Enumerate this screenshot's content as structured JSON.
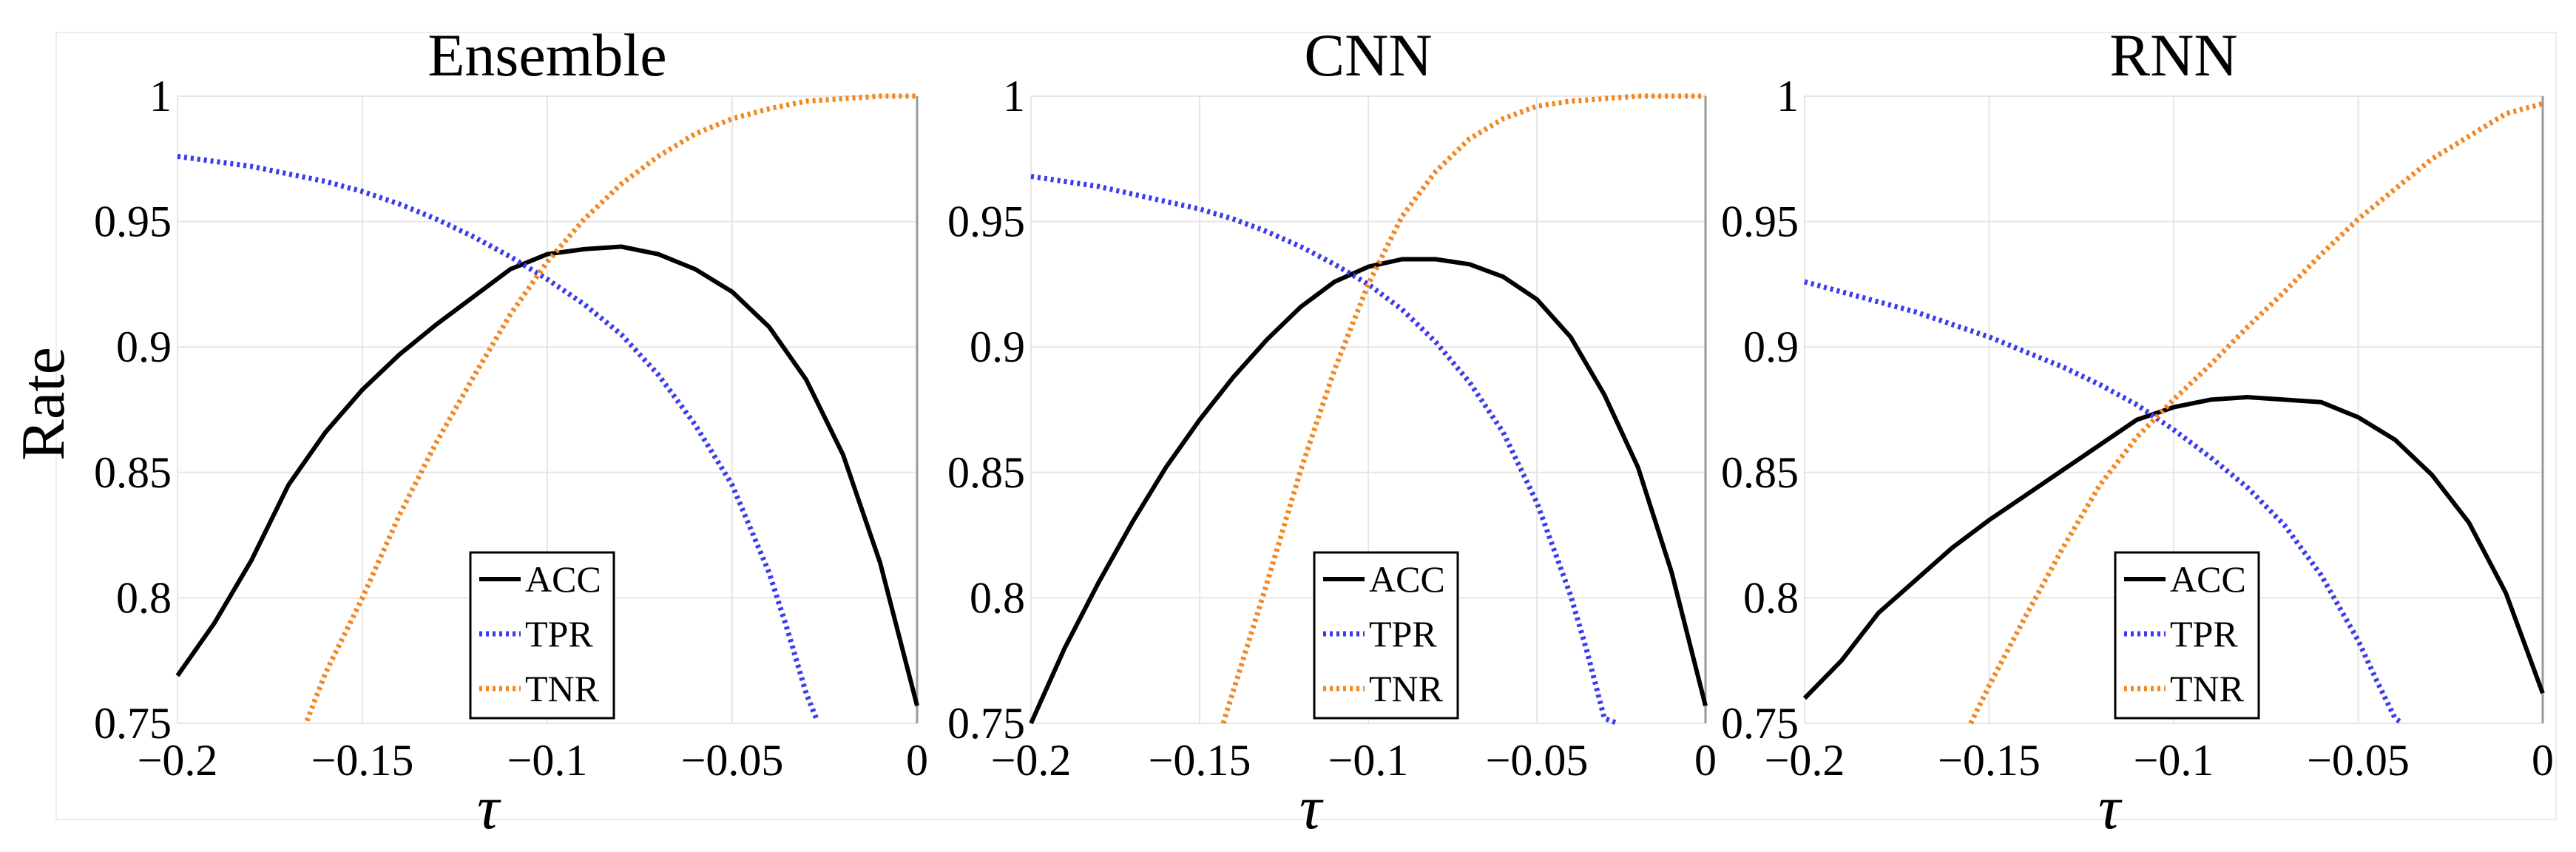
{
  "figure": {
    "ylabel": "Rate",
    "xlabel": "τ"
  },
  "colors": {
    "ACC": "#000000",
    "TPR": "#3b3bf0",
    "TNR": "#f5861f",
    "grid": "#e6e6e6"
  },
  "chart_data": [
    {
      "type": "line",
      "title": "Ensemble",
      "xlabel": "τ",
      "ylabel": "Rate",
      "xlim": [
        -0.2,
        0
      ],
      "ylim": [
        0.75,
        1
      ],
      "xticks": [
        -0.2,
        -0.15,
        -0.1,
        -0.05,
        0
      ],
      "xtick_labels": [
        "−0.2",
        "−0.15",
        "−0.1",
        "−0.05",
        "0"
      ],
      "yticks": [
        0.75,
        0.8,
        0.85,
        0.9,
        0.95,
        1
      ],
      "ytick_labels": [
        "0.75",
        "0.8",
        "0.85",
        "0.9",
        "0.95",
        "1"
      ],
      "grid": true,
      "legend": [
        "ACC",
        "TPR",
        "TNR"
      ],
      "series": [
        {
          "name": "ACC",
          "style": "solid",
          "x": [
            -0.2,
            -0.19,
            -0.18,
            -0.17,
            -0.16,
            -0.15,
            -0.14,
            -0.13,
            -0.12,
            -0.11,
            -0.1,
            -0.09,
            -0.08,
            -0.07,
            -0.06,
            -0.05,
            -0.04,
            -0.03,
            -0.02,
            -0.01,
            0
          ],
          "y": [
            0.769,
            0.79,
            0.815,
            0.845,
            0.866,
            0.883,
            0.897,
            0.909,
            0.92,
            0.931,
            0.937,
            0.939,
            0.94,
            0.937,
            0.931,
            0.922,
            0.908,
            0.887,
            0.857,
            0.814,
            0.757
          ]
        },
        {
          "name": "TPR",
          "style": "dotted",
          "x": [
            -0.2,
            -0.19,
            -0.18,
            -0.17,
            -0.16,
            -0.15,
            -0.14,
            -0.13,
            -0.12,
            -0.11,
            -0.1,
            -0.09,
            -0.08,
            -0.07,
            -0.06,
            -0.05,
            -0.04,
            -0.035,
            -0.03,
            -0.027
          ],
          "y": [
            0.976,
            0.974,
            0.972,
            0.969,
            0.966,
            0.962,
            0.957,
            0.951,
            0.944,
            0.936,
            0.927,
            0.917,
            0.905,
            0.889,
            0.869,
            0.845,
            0.81,
            0.787,
            0.762,
            0.751
          ]
        },
        {
          "name": "TNR",
          "style": "dotted",
          "x": [
            -0.165,
            -0.16,
            -0.15,
            -0.14,
            -0.13,
            -0.12,
            -0.11,
            -0.1,
            -0.09,
            -0.08,
            -0.07,
            -0.06,
            -0.05,
            -0.04,
            -0.03,
            -0.02,
            -0.01,
            0
          ],
          "y": [
            0.751,
            0.77,
            0.8,
            0.833,
            0.862,
            0.888,
            0.913,
            0.934,
            0.951,
            0.965,
            0.976,
            0.985,
            0.991,
            0.995,
            0.998,
            0.999,
            1.0,
            1.0
          ]
        }
      ]
    },
    {
      "type": "line",
      "title": "CNN",
      "xlabel": "τ",
      "ylabel": "Rate",
      "xlim": [
        -0.2,
        0
      ],
      "ylim": [
        0.75,
        1
      ],
      "xticks": [
        -0.2,
        -0.15,
        -0.1,
        -0.05,
        0
      ],
      "xtick_labels": [
        "−0.2",
        "−0.15",
        "−0.1",
        "−0.05",
        "0"
      ],
      "yticks": [
        0.75,
        0.8,
        0.85,
        0.9,
        0.95,
        1
      ],
      "ytick_labels": [
        "0.75",
        "0.8",
        "0.85",
        "0.9",
        "0.95",
        "1"
      ],
      "grid": true,
      "legend": [
        "ACC",
        "TPR",
        "TNR"
      ],
      "series": [
        {
          "name": "ACC",
          "style": "solid",
          "x": [
            -0.2,
            -0.19,
            -0.18,
            -0.17,
            -0.16,
            -0.15,
            -0.14,
            -0.13,
            -0.12,
            -0.11,
            -0.1,
            -0.09,
            -0.08,
            -0.07,
            -0.06,
            -0.05,
            -0.04,
            -0.03,
            -0.02,
            -0.01,
            0
          ],
          "y": [
            0.75,
            0.78,
            0.806,
            0.83,
            0.852,
            0.871,
            0.888,
            0.903,
            0.916,
            0.926,
            0.932,
            0.935,
            0.935,
            0.933,
            0.928,
            0.919,
            0.904,
            0.881,
            0.852,
            0.81,
            0.757
          ]
        },
        {
          "name": "TPR",
          "style": "dotted",
          "x": [
            -0.2,
            -0.19,
            -0.18,
            -0.17,
            -0.16,
            -0.15,
            -0.14,
            -0.13,
            -0.12,
            -0.11,
            -0.1,
            -0.09,
            -0.08,
            -0.07,
            -0.06,
            -0.05,
            -0.04,
            -0.035,
            -0.03,
            -0.026
          ],
          "y": [
            0.968,
            0.966,
            0.964,
            0.961,
            0.958,
            0.955,
            0.951,
            0.946,
            0.94,
            0.933,
            0.925,
            0.915,
            0.902,
            0.886,
            0.866,
            0.838,
            0.801,
            0.778,
            0.752,
            0.75
          ]
        },
        {
          "name": "TNR",
          "style": "dotted",
          "x": [
            -0.143,
            -0.14,
            -0.13,
            -0.12,
            -0.11,
            -0.1,
            -0.09,
            -0.08,
            -0.07,
            -0.06,
            -0.05,
            -0.04,
            -0.03,
            -0.02,
            -0.01,
            0
          ],
          "y": [
            0.75,
            0.763,
            0.806,
            0.851,
            0.891,
            0.925,
            0.952,
            0.97,
            0.983,
            0.991,
            0.996,
            0.998,
            0.999,
            1.0,
            1.0,
            1.0
          ]
        }
      ]
    },
    {
      "type": "line",
      "title": "RNN",
      "xlabel": "τ",
      "ylabel": "Rate",
      "xlim": [
        -0.2,
        0
      ],
      "ylim": [
        0.75,
        1
      ],
      "xticks": [
        -0.2,
        -0.15,
        -0.1,
        -0.05,
        0
      ],
      "xtick_labels": [
        "−0.2",
        "−0.15",
        "−0.1",
        "−0.05",
        "0"
      ],
      "yticks": [
        0.75,
        0.8,
        0.85,
        0.9,
        0.95,
        1
      ],
      "ytick_labels": [
        "0.75",
        "0.8",
        "0.85",
        "0.9",
        "0.95",
        "1"
      ],
      "grid": true,
      "legend": [
        "ACC",
        "TPR",
        "TNR"
      ],
      "series": [
        {
          "name": "ACC",
          "style": "solid",
          "x": [
            -0.2,
            -0.19,
            -0.18,
            -0.17,
            -0.16,
            -0.15,
            -0.14,
            -0.13,
            -0.12,
            -0.11,
            -0.1,
            -0.09,
            -0.08,
            -0.07,
            -0.06,
            -0.05,
            -0.04,
            -0.03,
            -0.02,
            -0.01,
            0
          ],
          "y": [
            0.76,
            0.775,
            0.794,
            0.807,
            0.82,
            0.831,
            0.841,
            0.851,
            0.861,
            0.871,
            0.876,
            0.879,
            0.88,
            0.879,
            0.878,
            0.872,
            0.863,
            0.849,
            0.83,
            0.802,
            0.762
          ]
        },
        {
          "name": "TPR",
          "style": "dotted",
          "x": [
            -0.2,
            -0.19,
            -0.18,
            -0.17,
            -0.16,
            -0.15,
            -0.14,
            -0.13,
            -0.12,
            -0.11,
            -0.1,
            -0.09,
            -0.08,
            -0.07,
            -0.06,
            -0.05,
            -0.045,
            -0.04,
            -0.038
          ],
          "y": [
            0.926,
            0.922,
            0.918,
            0.914,
            0.909,
            0.904,
            0.898,
            0.892,
            0.885,
            0.877,
            0.867,
            0.856,
            0.844,
            0.829,
            0.809,
            0.783,
            0.767,
            0.752,
            0.75
          ]
        },
        {
          "name": "TNR",
          "style": "dotted",
          "x": [
            -0.155,
            -0.15,
            -0.14,
            -0.13,
            -0.12,
            -0.11,
            -0.1,
            -0.09,
            -0.08,
            -0.07,
            -0.06,
            -0.05,
            -0.04,
            -0.03,
            -0.02,
            -0.01,
            0
          ],
          "y": [
            0.75,
            0.765,
            0.793,
            0.82,
            0.845,
            0.864,
            0.879,
            0.893,
            0.908,
            0.922,
            0.937,
            0.951,
            0.963,
            0.975,
            0.984,
            0.993,
            0.997
          ]
        }
      ]
    }
  ]
}
